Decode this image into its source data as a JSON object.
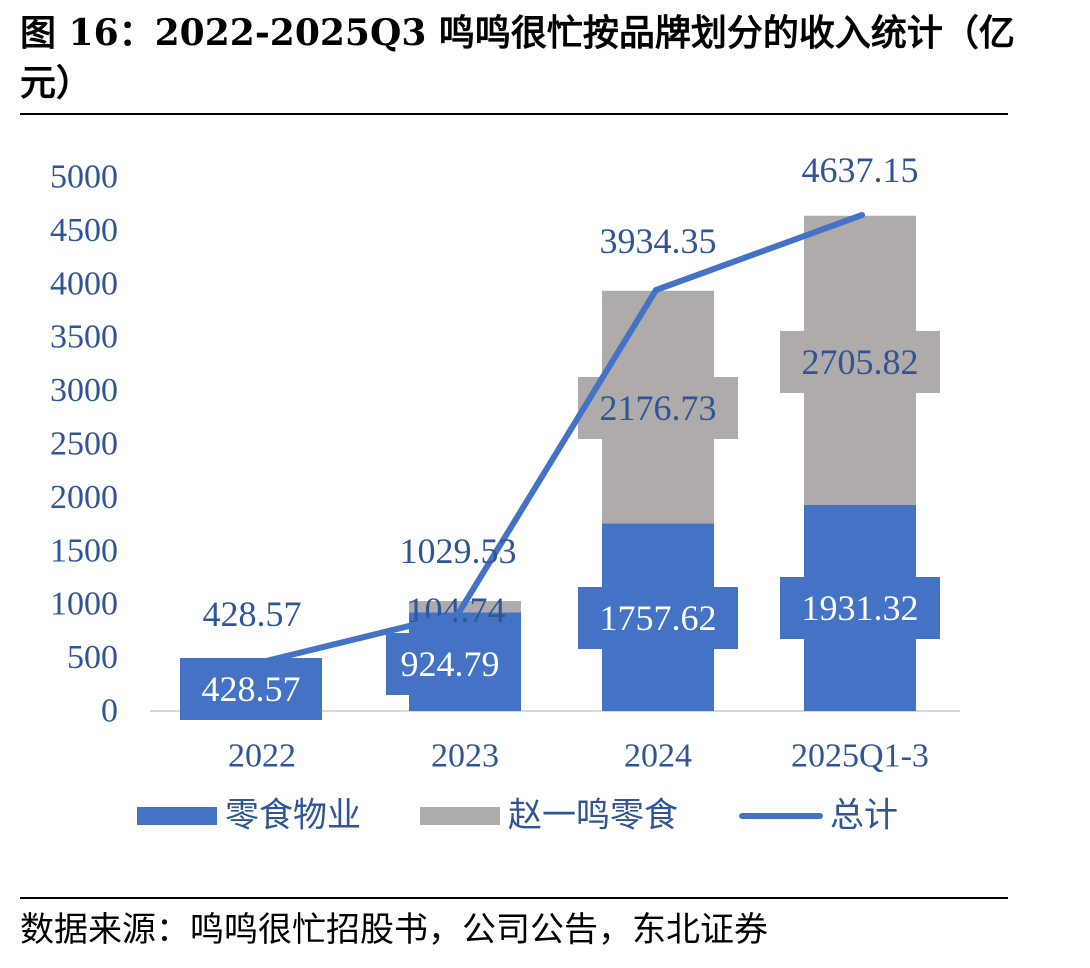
{
  "header": {
    "title": "图 16：2022-2025Q3 鸣鸣很忙按品牌划分的收入统计（亿元）"
  },
  "footer": {
    "source": "数据来源：鸣鸣很忙招股书，公司公告，东北证券"
  },
  "colors": {
    "blue": "#4472C4",
    "gray": "#AFABAB",
    "axis_text": "#2F5597"
  },
  "chart_data": {
    "type": "bar",
    "stacked": true,
    "categories": [
      "2022",
      "2023",
      "2024",
      "2025Q1-3"
    ],
    "series": [
      {
        "name": "零食物业",
        "type": "bar",
        "color": "#4472C4",
        "values": [
          428.57,
          924.79,
          1757.62,
          1931.32
        ]
      },
      {
        "name": "赵一鸣零食",
        "type": "bar",
        "color": "#AFABAB",
        "values": [
          0,
          104.74,
          2176.73,
          2705.82
        ]
      },
      {
        "name": "总计",
        "type": "line",
        "color": "#4472C4",
        "values": [
          428.57,
          1029.53,
          3934.35,
          4637.15
        ]
      }
    ],
    "data_labels": {
      "零食物业": [
        "428.57",
        "924.79",
        "1757.62",
        "1931.32"
      ],
      "赵一鸣零食": [
        "",
        "104.74",
        "2176.73",
        "2705.82"
      ],
      "总计": [
        "428.57",
        "1029.53",
        "3934.35",
        "4637.15"
      ]
    },
    "ylim": [
      0,
      5000
    ],
    "yticks": [
      "0",
      "500",
      "1000",
      "1500",
      "2000",
      "2500",
      "3000",
      "3500",
      "4000",
      "4500",
      "5000"
    ],
    "legend_position": "bottom",
    "grid": false
  }
}
